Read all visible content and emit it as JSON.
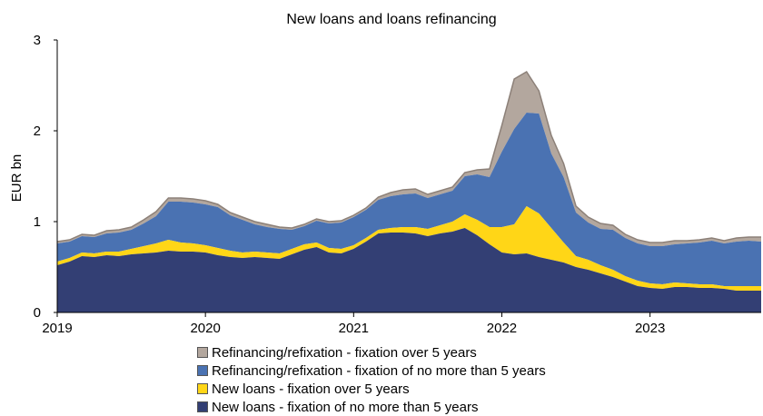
{
  "chart_data": {
    "type": "area",
    "stacked": true,
    "title": "New loans and loans refinancing",
    "xlabel": "",
    "ylabel": "EUR bn",
    "ylim": [
      0,
      3
    ],
    "yticks": [
      "0",
      "1",
      "2",
      "3"
    ],
    "xticks": [
      "2019",
      "2020",
      "2021",
      "2022",
      "2023"
    ],
    "grid": false,
    "legend_position": "bottom",
    "x": [
      "2019-01",
      "2019-02",
      "2019-03",
      "2019-04",
      "2019-05",
      "2019-06",
      "2019-07",
      "2019-08",
      "2019-09",
      "2019-10",
      "2019-11",
      "2019-12",
      "2020-01",
      "2020-02",
      "2020-03",
      "2020-04",
      "2020-05",
      "2020-06",
      "2020-07",
      "2020-08",
      "2020-09",
      "2020-10",
      "2020-11",
      "2020-12",
      "2021-01",
      "2021-02",
      "2021-03",
      "2021-04",
      "2021-05",
      "2021-06",
      "2021-07",
      "2021-08",
      "2021-09",
      "2021-10",
      "2021-11",
      "2021-12",
      "2022-01",
      "2022-02",
      "2022-03",
      "2022-04",
      "2022-05",
      "2022-06",
      "2022-07",
      "2022-08",
      "2022-09",
      "2022-10",
      "2022-11",
      "2022-12",
      "2023-01",
      "2023-02",
      "2023-03",
      "2023-04",
      "2023-05",
      "2023-06",
      "2023-07",
      "2023-08",
      "2023-09",
      "2023-10"
    ],
    "series": [
      {
        "name": "New loans - fixation of no more than 5 years",
        "color": "#333f74",
        "values": [
          0.52,
          0.56,
          0.62,
          0.61,
          0.63,
          0.62,
          0.64,
          0.65,
          0.66,
          0.68,
          0.67,
          0.67,
          0.66,
          0.63,
          0.61,
          0.6,
          0.61,
          0.6,
          0.59,
          0.64,
          0.69,
          0.72,
          0.66,
          0.65,
          0.7,
          0.78,
          0.87,
          0.88,
          0.88,
          0.87,
          0.84,
          0.87,
          0.89,
          0.93,
          0.85,
          0.75,
          0.66,
          0.64,
          0.65,
          0.61,
          0.58,
          0.55,
          0.5,
          0.47,
          0.43,
          0.39,
          0.34,
          0.29,
          0.27,
          0.26,
          0.28,
          0.28,
          0.27,
          0.27,
          0.26,
          0.24,
          0.24,
          0.24
        ]
      },
      {
        "name": "New loans - fixation over 5 years",
        "color": "#ffd617",
        "values": [
          0.04,
          0.04,
          0.04,
          0.04,
          0.04,
          0.05,
          0.06,
          0.08,
          0.1,
          0.12,
          0.1,
          0.09,
          0.08,
          0.08,
          0.07,
          0.06,
          0.06,
          0.06,
          0.06,
          0.06,
          0.06,
          0.05,
          0.05,
          0.05,
          0.04,
          0.04,
          0.04,
          0.05,
          0.06,
          0.07,
          0.08,
          0.09,
          0.11,
          0.15,
          0.17,
          0.19,
          0.28,
          0.33,
          0.52,
          0.48,
          0.35,
          0.22,
          0.12,
          0.11,
          0.09,
          0.08,
          0.06,
          0.06,
          0.05,
          0.05,
          0.05,
          0.04,
          0.04,
          0.04,
          0.03,
          0.05,
          0.05,
          0.05
        ]
      },
      {
        "name": "Refinancing/refixation - fixation of no more than 5 years",
        "color": "#4a72b2",
        "values": [
          0.2,
          0.18,
          0.18,
          0.18,
          0.2,
          0.21,
          0.21,
          0.25,
          0.3,
          0.42,
          0.45,
          0.45,
          0.45,
          0.45,
          0.39,
          0.36,
          0.3,
          0.28,
          0.27,
          0.21,
          0.2,
          0.24,
          0.27,
          0.29,
          0.31,
          0.31,
          0.33,
          0.35,
          0.36,
          0.37,
          0.34,
          0.34,
          0.34,
          0.42,
          0.5,
          0.55,
          0.83,
          1.05,
          1.03,
          1.1,
          0.82,
          0.72,
          0.48,
          0.41,
          0.4,
          0.44,
          0.42,
          0.41,
          0.41,
          0.42,
          0.42,
          0.44,
          0.46,
          0.48,
          0.47,
          0.49,
          0.5,
          0.49
        ]
      },
      {
        "name": "Refinancing/refixation - fixation over 5 years",
        "color": "#b3a79e",
        "values": [
          0.02,
          0.02,
          0.02,
          0.02,
          0.03,
          0.03,
          0.03,
          0.04,
          0.05,
          0.04,
          0.04,
          0.04,
          0.04,
          0.03,
          0.03,
          0.03,
          0.03,
          0.03,
          0.02,
          0.02,
          0.02,
          0.02,
          0.02,
          0.02,
          0.02,
          0.02,
          0.03,
          0.04,
          0.05,
          0.05,
          0.04,
          0.04,
          0.04,
          0.04,
          0.05,
          0.09,
          0.29,
          0.55,
          0.45,
          0.25,
          0.2,
          0.15,
          0.07,
          0.06,
          0.06,
          0.05,
          0.04,
          0.04,
          0.04,
          0.04,
          0.04,
          0.03,
          0.03,
          0.03,
          0.03,
          0.04,
          0.04,
          0.05
        ]
      }
    ]
  }
}
